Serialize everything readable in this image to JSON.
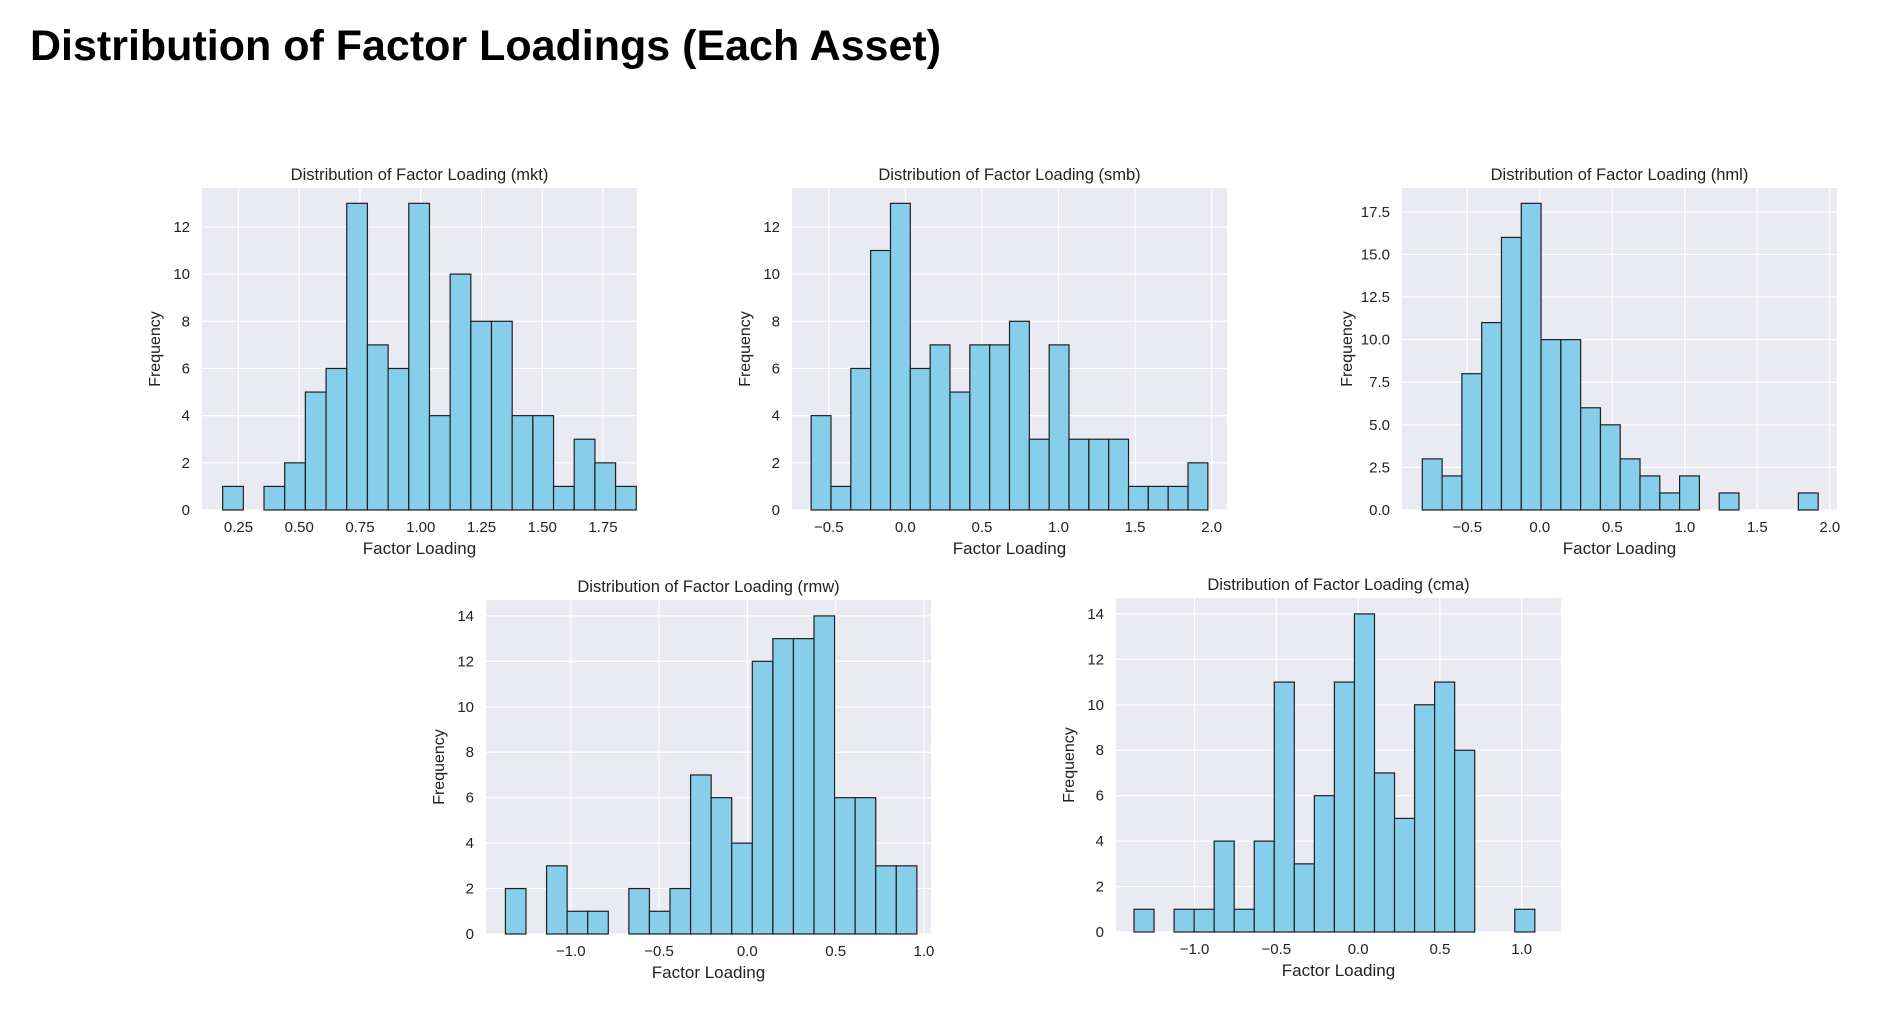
{
  "page": {
    "title": "Distribution of Factor Loadings (Each Asset)"
  },
  "style": {
    "bar_fill": "#87ceeb",
    "bar_edge": "#1f1f1f",
    "plot_bg": "#eaeaf2",
    "grid": "#ffffff"
  },
  "chart_data": [
    {
      "id": "mkt",
      "type": "bar",
      "title": "Distribution of Factor Loading (mkt)",
      "xlabel": "Factor Loading",
      "ylabel": "Frequency",
      "xlim": [
        0.1,
        1.89
      ],
      "ylim": [
        0,
        13.65
      ],
      "xticks": [
        0.25,
        0.5,
        0.75,
        1.0,
        1.25,
        1.5,
        1.75
      ],
      "xtick_labels": [
        "0.25",
        "0.50",
        "0.75",
        "1.00",
        "1.25",
        "1.50",
        "1.75"
      ],
      "yticks": [
        0,
        2,
        4,
        6,
        8,
        10,
        12
      ],
      "ytick_labels": [
        "0",
        "2",
        "4",
        "6",
        "8",
        "10",
        "12"
      ],
      "bin_start": 0.185,
      "bin_width": 0.0851,
      "values": [
        1,
        0,
        1,
        2,
        5,
        6,
        13,
        7,
        6,
        13,
        4,
        10,
        8,
        8,
        4,
        4,
        1,
        3,
        2,
        1
      ]
    },
    {
      "id": "smb",
      "type": "bar",
      "title": "Distribution of Factor Loading (smb)",
      "xlabel": "Factor Loading",
      "ylabel": "Frequency",
      "xlim": [
        -0.74,
        2.1
      ],
      "ylim": [
        0,
        13.65
      ],
      "xticks": [
        -0.5,
        0.0,
        0.5,
        1.0,
        1.5,
        2.0
      ],
      "xtick_labels": [
        "−0.5",
        "0.0",
        "0.5",
        "1.0",
        "1.5",
        "2.0"
      ],
      "yticks": [
        0,
        2,
        4,
        6,
        8,
        10,
        12
      ],
      "ytick_labels": [
        "0",
        "2",
        "4",
        "6",
        "8",
        "10",
        "12"
      ],
      "bin_start": -0.615,
      "bin_width": 0.1295,
      "values": [
        4,
        1,
        6,
        11,
        13,
        6,
        7,
        5,
        7,
        7,
        8,
        3,
        7,
        3,
        3,
        3,
        1,
        1,
        1,
        2
      ]
    },
    {
      "id": "hml",
      "type": "bar",
      "title": "Distribution of Factor Loading (hml)",
      "xlabel": "Factor Loading",
      "ylabel": "Frequency",
      "xlim": [
        -0.95,
        2.05
      ],
      "ylim": [
        0,
        18.9
      ],
      "xticks": [
        -0.5,
        0.0,
        0.5,
        1.0,
        1.5,
        2.0
      ],
      "xtick_labels": [
        "−0.5",
        "0.0",
        "0.5",
        "1.0",
        "1.5",
        "2.0"
      ],
      "yticks": [
        0,
        2.5,
        5,
        7.5,
        10,
        12.5,
        15,
        17.5
      ],
      "ytick_labels": [
        "0.0",
        "2.5",
        "5.0",
        "7.5",
        "10.0",
        "12.5",
        "15.0",
        "17.5"
      ],
      "bin_start": -0.81,
      "bin_width": 0.1365,
      "values": [
        3,
        2,
        8,
        11,
        16,
        18,
        10,
        10,
        6,
        5,
        3,
        2,
        1,
        2,
        0,
        1,
        0,
        0,
        0,
        1
      ]
    },
    {
      "id": "rmw",
      "type": "bar",
      "title": "Distribution of Factor Loading (rmw)",
      "xlabel": "Factor Loading",
      "ylabel": "Frequency",
      "xlim": [
        -1.48,
        1.04
      ],
      "ylim": [
        0,
        14.7
      ],
      "xticks": [
        -1.0,
        -0.5,
        0.0,
        0.5,
        1.0
      ],
      "xtick_labels": [
        "−1.0",
        "−0.5",
        "0.0",
        "0.5",
        "1.0"
      ],
      "yticks": [
        0,
        2,
        4,
        6,
        8,
        10,
        12,
        14
      ],
      "ytick_labels": [
        "0",
        "2",
        "4",
        "6",
        "8",
        "10",
        "12",
        "14"
      ],
      "bin_start": -1.37,
      "bin_width": 0.1165,
      "values": [
        2,
        0,
        3,
        1,
        1,
        0,
        2,
        1,
        2,
        7,
        6,
        4,
        12,
        13,
        13,
        14,
        6,
        6,
        3,
        3
      ]
    },
    {
      "id": "cma",
      "type": "bar",
      "title": "Distribution of Factor Loading (cma)",
      "xlabel": "Factor Loading",
      "ylabel": "Frequency",
      "xlim": [
        -1.48,
        1.24
      ],
      "ylim": [
        0,
        14.7
      ],
      "xticks": [
        -1.0,
        -0.5,
        0.0,
        0.5,
        1.0
      ],
      "xtick_labels": [
        "−1.0",
        "−0.5",
        "0.0",
        "0.5",
        "1.0"
      ],
      "yticks": [
        0,
        2,
        4,
        6,
        8,
        10,
        12,
        14
      ],
      "ytick_labels": [
        "0",
        "2",
        "4",
        "6",
        "8",
        "10",
        "12",
        "14"
      ],
      "bin_start": -1.37,
      "bin_width": 0.1225,
      "values": [
        1,
        0,
        1,
        1,
        4,
        1,
        4,
        11,
        3,
        6,
        11,
        14,
        7,
        5,
        10,
        11,
        8,
        0,
        0,
        1
      ]
    }
  ]
}
